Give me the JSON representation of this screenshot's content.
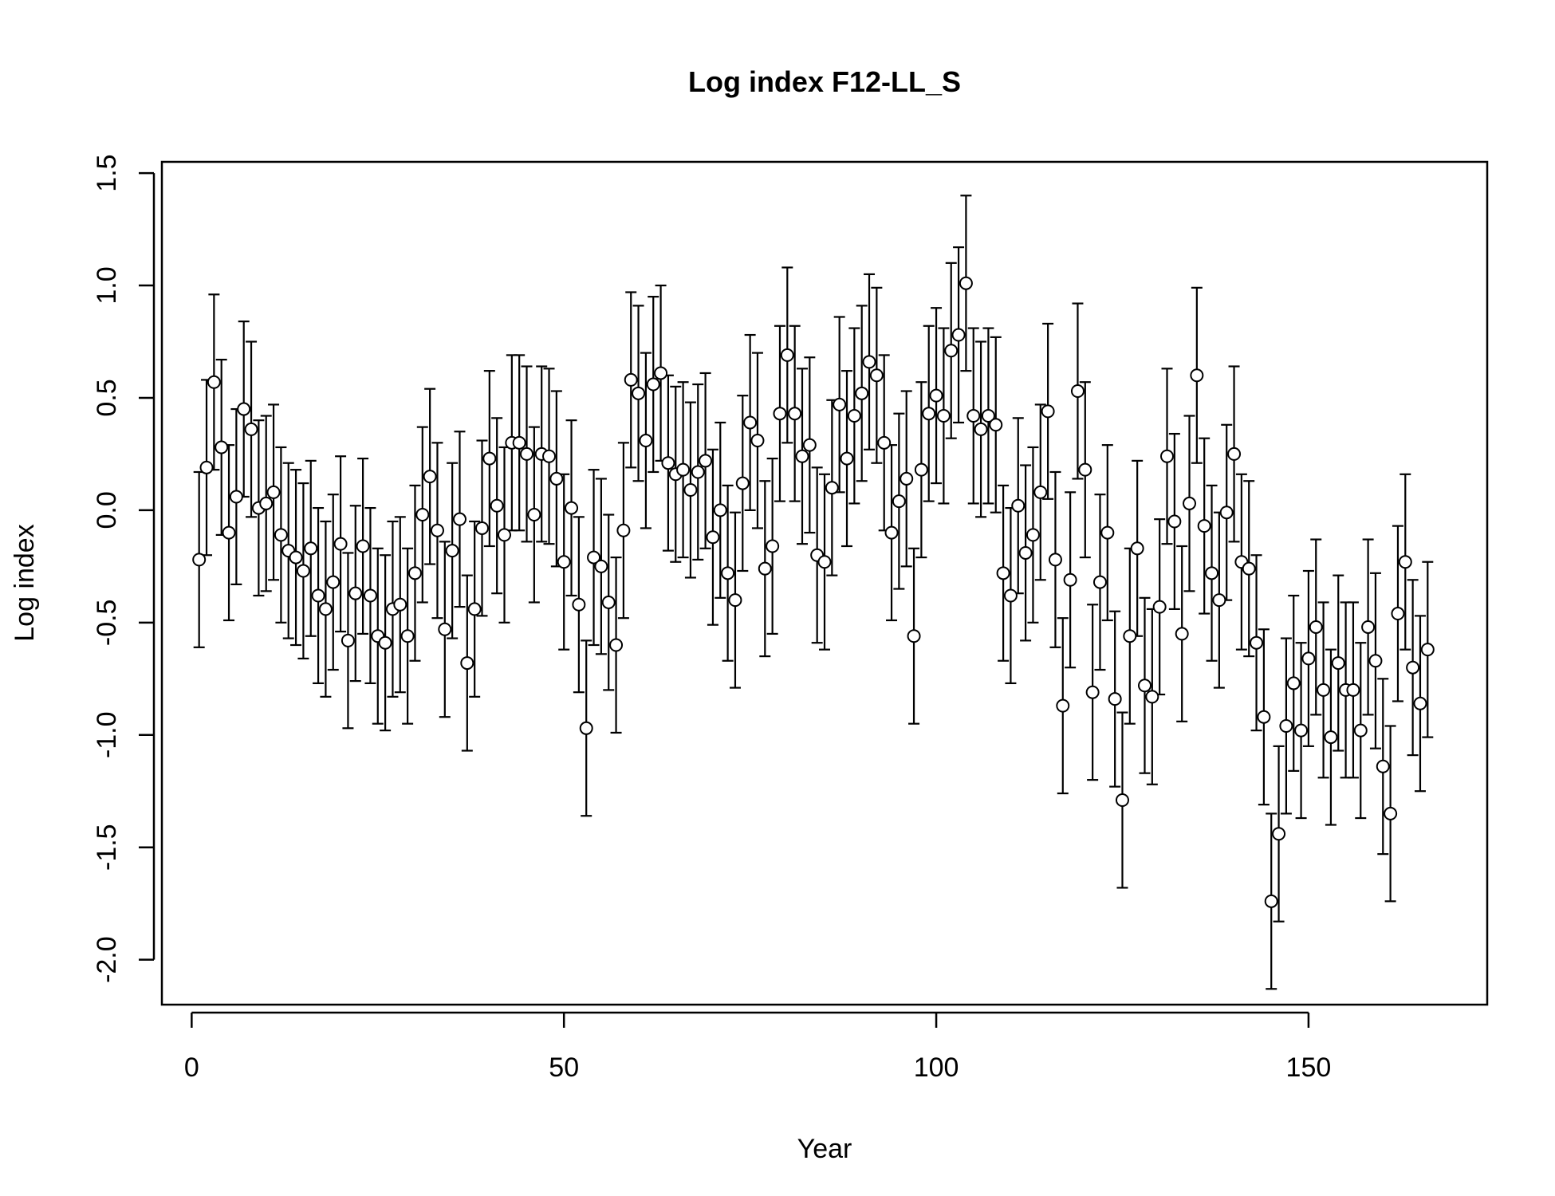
{
  "chart_data": {
    "type": "scatter",
    "title": "Log index F12-LL_S",
    "xlabel": "Year",
    "ylabel": "Log index",
    "xlim": [
      -4,
      174
    ],
    "ylim": [
      -2.2,
      1.55
    ],
    "xticks": [
      0,
      50,
      100,
      150
    ],
    "xtick_labels": [
      "0",
      "50",
      "100",
      "150"
    ],
    "yticks": [
      -2.0,
      -1.5,
      -1.0,
      -0.5,
      0.0,
      0.5,
      1.0,
      1.5
    ],
    "ytick_labels": [
      "-2.0",
      "-1.5",
      "-1.0",
      "-0.5",
      "0.0",
      "0.5",
      "1.0",
      "1.5"
    ],
    "grid": false,
    "error_half_width": 0.39,
    "series": [
      {
        "x": [
          1,
          2,
          3,
          4,
          5,
          6,
          7,
          8,
          9,
          10,
          11,
          12,
          13,
          14,
          15,
          16,
          17,
          18,
          19,
          20,
          21,
          22,
          23,
          24,
          25,
          26,
          27,
          28,
          29,
          30,
          31,
          32,
          33,
          34,
          35,
          36,
          37,
          38,
          39,
          40,
          41,
          42,
          43,
          44,
          45,
          46,
          47,
          48,
          49,
          50,
          51,
          52,
          53,
          54,
          55,
          56,
          57,
          58,
          59,
          60,
          61,
          62,
          63,
          64,
          65,
          66,
          67,
          68,
          69,
          70,
          71,
          72,
          73,
          74,
          75,
          76,
          77,
          78,
          79,
          80,
          81,
          82,
          83,
          84,
          85,
          86,
          87,
          88,
          89,
          90,
          91,
          92,
          93,
          94,
          95,
          96,
          97,
          98,
          99,
          100,
          101,
          102,
          103,
          104,
          105,
          106,
          107,
          108,
          109,
          110,
          111,
          112,
          113,
          114,
          115,
          116,
          117,
          118,
          119,
          120,
          121,
          122,
          123,
          124,
          125,
          126,
          127,
          128,
          129,
          130,
          131,
          132,
          133,
          134,
          135,
          136,
          137,
          138,
          139,
          140,
          141,
          142,
          143,
          144,
          145,
          146,
          147,
          148,
          149,
          150,
          151,
          152,
          153,
          154,
          155,
          156,
          157,
          158,
          159,
          160,
          161,
          162,
          163,
          164,
          165,
          166
        ],
        "y": [
          -0.22,
          0.19,
          0.57,
          0.28,
          -0.1,
          0.06,
          0.45,
          0.36,
          0.01,
          0.03,
          0.08,
          -0.11,
          -0.18,
          -0.21,
          -0.27,
          -0.17,
          -0.38,
          -0.44,
          -0.32,
          -0.15,
          -0.58,
          -0.37,
          -0.16,
          -0.38,
          -0.56,
          -0.59,
          -0.44,
          -0.42,
          -0.56,
          -0.28,
          -0.02,
          0.15,
          -0.09,
          -0.53,
          -0.18,
          -0.04,
          -0.68,
          -0.44,
          -0.08,
          0.23,
          0.02,
          -0.11,
          0.3,
          0.3,
          0.25,
          -0.02,
          0.25,
          0.24,
          0.14,
          -0.23,
          0.01,
          -0.42,
          -0.97,
          -0.21,
          -0.25,
          -0.41,
          -0.6,
          -0.09,
          0.58,
          0.52,
          0.31,
          0.56,
          0.61,
          0.21,
          0.16,
          0.18,
          0.09,
          0.17,
          0.22,
          -0.12,
          0.0,
          -0.28,
          -0.4,
          0.12,
          0.39,
          0.31,
          -0.26,
          -0.16,
          0.43,
          0.69,
          0.43,
          0.24,
          0.29,
          -0.2,
          -0.23,
          0.1,
          0.47,
          0.23,
          0.42,
          0.52,
          0.66,
          0.6,
          0.3,
          -0.1,
          0.04,
          0.14,
          -0.56,
          0.18,
          0.43,
          0.51,
          0.42,
          0.71,
          0.78,
          1.01,
          0.42,
          0.36,
          0.42,
          0.38,
          -0.28,
          -0.38,
          0.02,
          -0.19,
          -0.11,
          0.08,
          0.44,
          -0.22,
          -0.87,
          -0.31,
          0.53,
          0.18,
          -0.81,
          -0.32,
          -0.1,
          -0.84,
          -1.29,
          -0.56,
          -0.17,
          -0.78,
          -0.83,
          -0.43,
          0.24,
          -0.05,
          -0.55,
          0.03,
          0.6,
          -0.07,
          -0.28,
          -0.4,
          -0.01,
          0.25,
          -0.23,
          -0.26,
          -0.59,
          -0.92,
          -1.74,
          -1.44,
          -0.96,
          -0.77,
          -0.98,
          -0.66,
          -0.52,
          -0.8,
          -1.01,
          -0.68,
          -0.8,
          -0.8,
          -0.98,
          -0.52,
          -0.67,
          -1.14,
          -1.35,
          -0.46,
          -0.23,
          -0.7,
          -0.86,
          -0.62
        ]
      }
    ]
  }
}
